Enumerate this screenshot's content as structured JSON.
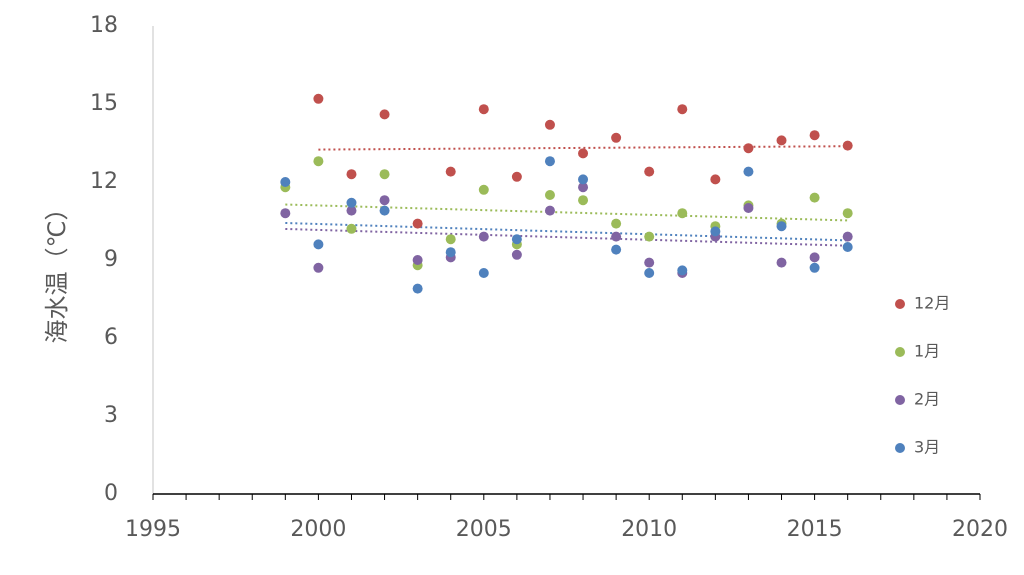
{
  "chart_data": {
    "type": "scatter",
    "ylabel": "海水温（℃）",
    "xlabel": "",
    "title": "",
    "xlim": [
      1995,
      2020
    ],
    "ylim": [
      0,
      18
    ],
    "xticks": [
      "1995",
      "2000",
      "2005",
      "2010",
      "2015",
      "2020"
    ],
    "yticks": [
      "0",
      "3",
      "6",
      "9",
      "12",
      "15",
      "18"
    ],
    "grid": false,
    "legend_position": "right",
    "trendlines": "linear, dotted",
    "x": [
      1999,
      2000,
      2001,
      2002,
      2003,
      2004,
      2005,
      2006,
      2007,
      2008,
      2009,
      2010,
      2011,
      2012,
      2013,
      2014,
      2015,
      2016
    ],
    "series": [
      {
        "name": "12月",
        "color": "#c0504d",
        "values": [
          null,
          15.2,
          12.3,
          14.6,
          10.4,
          12.4,
          14.8,
          12.2,
          14.2,
          13.1,
          13.7,
          12.4,
          14.8,
          12.1,
          13.3,
          13.6,
          13.8,
          13.4
        ]
      },
      {
        "name": "1月",
        "color": "#9bbb59",
        "values": [
          11.8,
          12.8,
          10.2,
          12.3,
          8.8,
          9.8,
          11.7,
          9.6,
          11.5,
          11.3,
          10.4,
          9.9,
          10.8,
          10.3,
          11.1,
          10.4,
          11.4,
          10.8
        ]
      },
      {
        "name": "2月",
        "color": "#8064a2",
        "values": [
          10.8,
          8.7,
          10.9,
          11.3,
          9.0,
          9.1,
          9.9,
          9.2,
          10.9,
          11.8,
          9.9,
          8.9,
          8.5,
          9.9,
          11.0,
          8.9,
          9.1,
          9.9
        ]
      },
      {
        "name": "3月",
        "color": "#4f81bd",
        "values": [
          12.0,
          9.6,
          11.2,
          10.9,
          7.9,
          9.3,
          8.5,
          9.8,
          12.8,
          12.1,
          9.4,
          8.5,
          8.6,
          10.1,
          12.4,
          10.3,
          8.7,
          9.5
        ]
      }
    ]
  }
}
